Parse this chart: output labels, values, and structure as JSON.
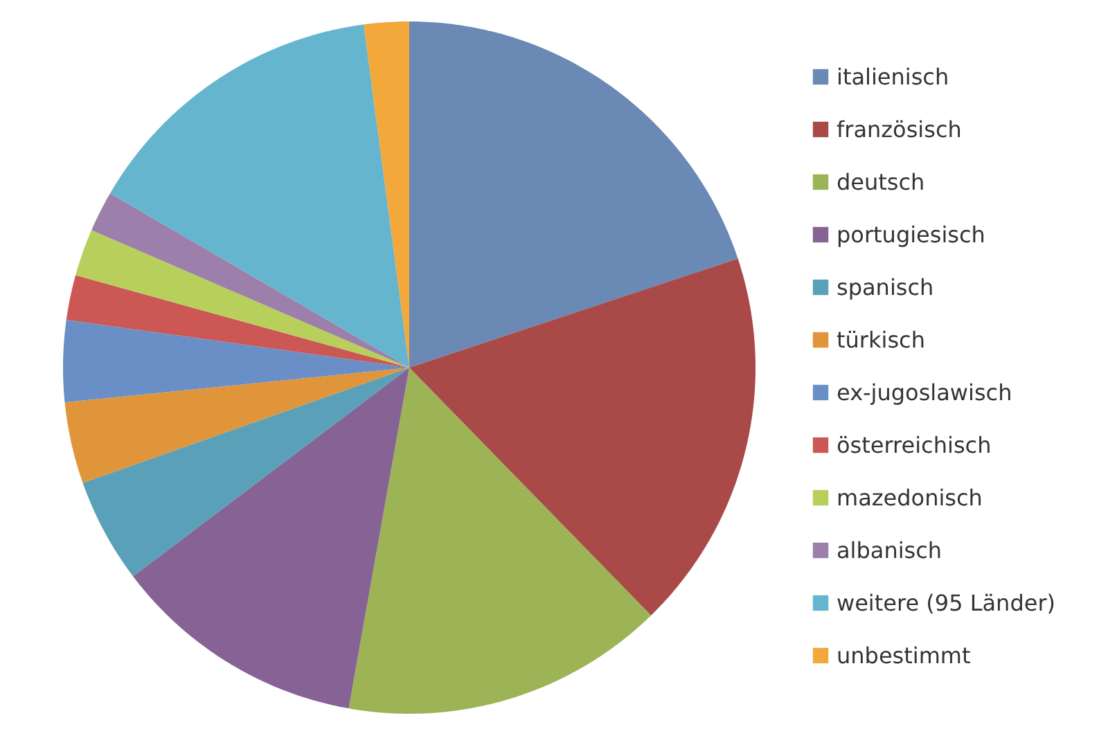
{
  "chart_data": {
    "type": "pie",
    "categories": [
      "italienisch",
      "französisch",
      "deutsch",
      "portugiesisch",
      "spanisch",
      "türkisch",
      "ex-jugoslawisch",
      "österreichisch",
      "mazedonisch",
      "albanisch",
      "weitere (95 Länder)",
      "unbestimmt"
    ],
    "values": [
      19.9,
      17.8,
      15.1,
      11.9,
      4.9,
      3.8,
      3.8,
      2.1,
      2.2,
      1.9,
      14.5,
      2.1
    ],
    "colors": [
      "#6a89b5",
      "#a94a48",
      "#9cb356",
      "#866295",
      "#5aa0b8",
      "#e0953a",
      "#6a8fc7",
      "#cc5856",
      "#b8cf5b",
      "#9c80ab",
      "#66b5cf",
      "#f2a83a"
    ],
    "legend": "right"
  }
}
